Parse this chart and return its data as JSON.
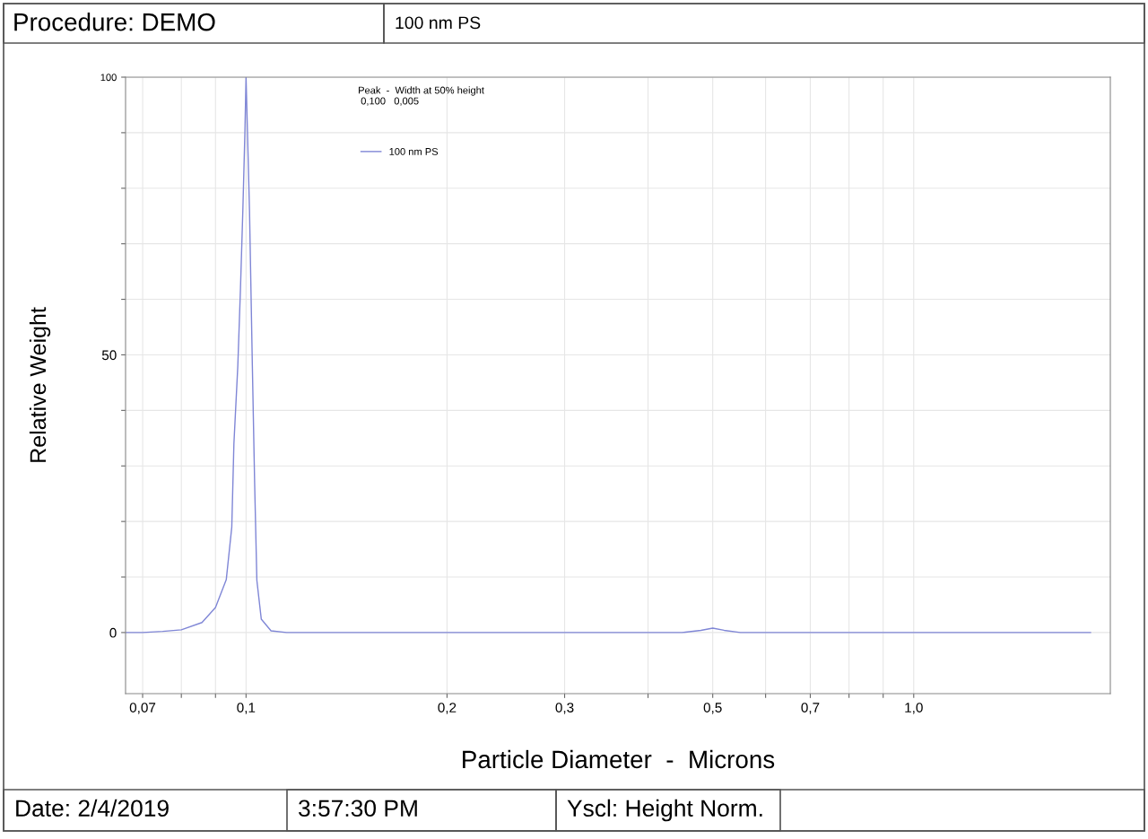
{
  "chart_data": {
    "type": "line",
    "title": "Procedure: DEMO",
    "subtitle": "100 nm PS",
    "xlabel": "Particle Diameter  -  Microns",
    "ylabel": "Relative Weight",
    "annotations": [
      "Peak  -  Width at 50% height\n 0,100   0,005",
      "Date: 2/4/2019",
      "3:57:30 PM",
      "Yscl: Height Norm."
    ],
    "log": "x",
    "xlim": [
      0.066,
      1.97
    ],
    "ylim": [
      -11,
      100
    ],
    "xticks": [
      {
        "value": 0.07,
        "label": "0,07"
      },
      {
        "value": 0.08,
        "label": null
      },
      {
        "value": 0.09,
        "label": null
      },
      {
        "value": 0.1,
        "label": "0,1"
      },
      {
        "value": 0.2,
        "label": "0,2"
      },
      {
        "value": 0.3,
        "label": "0,3"
      },
      {
        "value": 0.4,
        "label": null
      },
      {
        "value": 0.5,
        "label": "0,5"
      },
      {
        "value": 0.6,
        "label": null
      },
      {
        "value": 0.7,
        "label": "0,7"
      },
      {
        "value": 0.8,
        "label": null
      },
      {
        "value": 0.9,
        "label": null
      },
      {
        "value": 1.0,
        "label": "1,0"
      }
    ],
    "yticks": [
      0,
      {
        "value": 10,
        "label": null
      },
      {
        "value": 20,
        "label": null
      },
      {
        "value": 30,
        "label": null
      },
      {
        "value": 40,
        "label": null
      },
      50,
      {
        "value": 60,
        "label": null
      },
      {
        "value": 70,
        "label": null
      },
      {
        "value": 80,
        "label": null
      },
      {
        "value": 90,
        "label": null
      },
      100
    ],
    "grid": true,
    "legend": "top",
    "marker": "none",
    "line_style": "solid",
    "series": [
      {
        "name": "100 nm PS",
        "color": "#7f86d6",
        "x": [
          0.066,
          0.07,
          0.075,
          0.08,
          0.0859,
          0.09,
          0.0934,
          0.0952,
          0.0959,
          0.0972,
          0.0981,
          0.0989,
          0.0996,
          0.1,
          0.1012,
          0.1022,
          0.103,
          0.1038,
          0.1054,
          0.109,
          0.115,
          0.2,
          0.3,
          0.45,
          0.48,
          0.5,
          0.52,
          0.55,
          0.7,
          1.0,
          1.84
        ],
        "values": [
          0,
          0,
          0.2,
          0.5,
          1.8,
          4.5,
          9.5,
          19,
          34,
          48,
          62,
          76,
          90,
          100,
          76,
          48,
          27,
          9.4,
          2.4,
          0.3,
          0,
          0,
          0,
          0,
          0.4,
          0.8,
          0.4,
          0,
          0,
          0,
          0
        ]
      }
    ]
  }
}
